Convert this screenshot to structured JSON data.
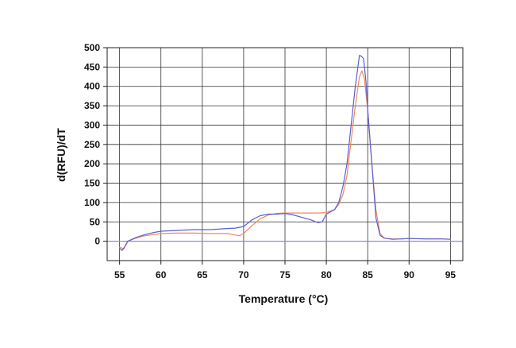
{
  "chart_data": {
    "type": "line",
    "title": "",
    "xlabel": "Temperature (°C)",
    "ylabel": "d(RFU)/dT",
    "xlim": [
      53.5,
      96.5
    ],
    "ylim": [
      -50,
      500
    ],
    "xticks": [
      55,
      60,
      65,
      70,
      75,
      80,
      85,
      90,
      95
    ],
    "yticks": [
      0,
      50,
      100,
      150,
      200,
      250,
      300,
      350,
      400,
      450,
      500
    ],
    "grid": true,
    "legend": "none",
    "baseline_y": 0,
    "baseline_color": "#8a8ad8",
    "series": [
      {
        "color": "#ef8a5c",
        "x": [
          55,
          55.5,
          56,
          57,
          58,
          59,
          60,
          62,
          64,
          66,
          68,
          69.5,
          70,
          71,
          72,
          73,
          74,
          75,
          76,
          77,
          78,
          79,
          80,
          81,
          81.5,
          82,
          82.5,
          83,
          83.5,
          84,
          84.3,
          84.6,
          85,
          85.5,
          86,
          86.5,
          87,
          88,
          89,
          90,
          92,
          94,
          95
        ],
        "y": [
          -15,
          -20,
          0,
          8,
          14,
          17,
          20,
          21,
          21,
          20,
          20,
          14,
          20,
          40,
          58,
          68,
          72,
          73,
          73,
          73,
          73,
          73,
          74,
          82,
          95,
          120,
          170,
          260,
          350,
          425,
          440,
          420,
          340,
          200,
          80,
          20,
          8,
          6,
          6,
          7,
          6,
          6,
          5
        ]
      },
      {
        "color": "#5b5fd0",
        "x": [
          55,
          55.3,
          55.6,
          56,
          57,
          58,
          59,
          60,
          62,
          64,
          66,
          68,
          69,
          70,
          71,
          72,
          73,
          74,
          75,
          76,
          77,
          78,
          79,
          79.5,
          80,
          81,
          81.5,
          82,
          82.5,
          83,
          83.5,
          84,
          84.2,
          84.5,
          84.8,
          85,
          85.5,
          86,
          86.5,
          87,
          88,
          89,
          90,
          92,
          94,
          95
        ],
        "y": [
          -18,
          -24,
          -15,
          0,
          10,
          17,
          22,
          26,
          28,
          30,
          30,
          33,
          34,
          38,
          55,
          66,
          70,
          70,
          72,
          68,
          62,
          56,
          48,
          50,
          70,
          82,
          100,
          140,
          200,
          300,
          400,
          480,
          478,
          472,
          410,
          340,
          200,
          60,
          15,
          8,
          5,
          6,
          7,
          6,
          6,
          5
        ]
      }
    ]
  }
}
